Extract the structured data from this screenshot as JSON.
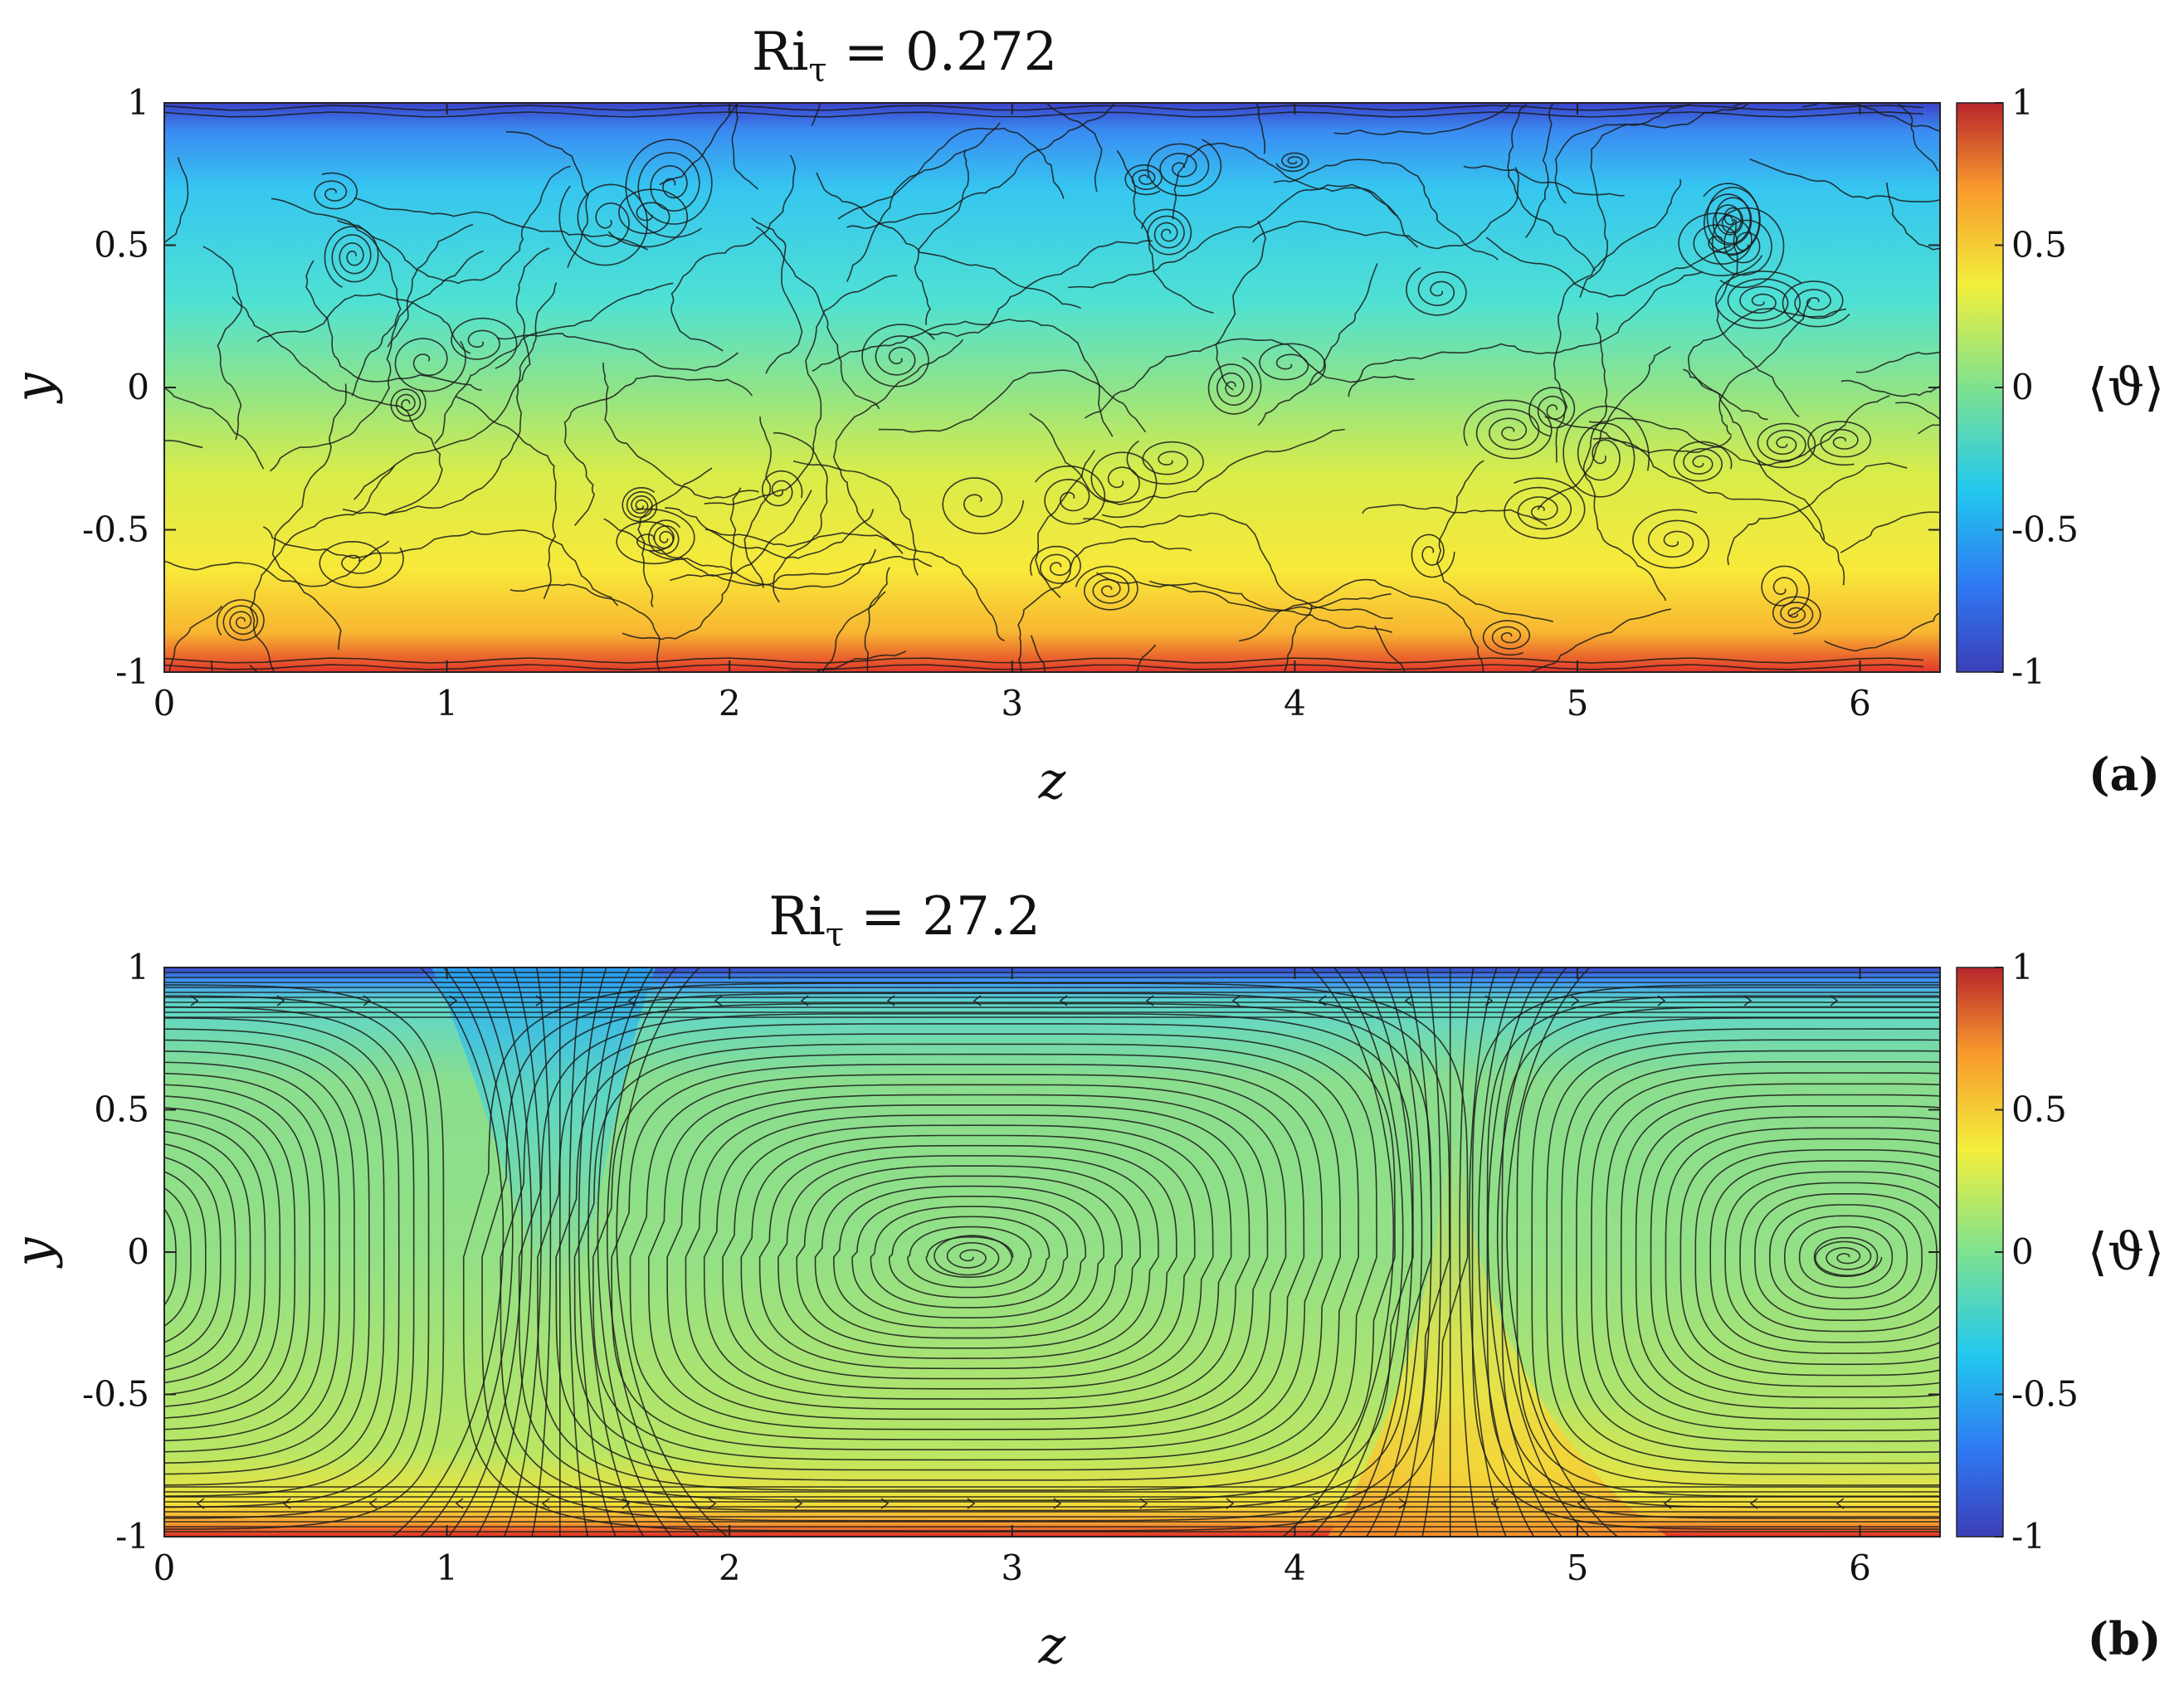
{
  "chart_data": [
    {
      "type": "heatmap",
      "panel_label": "(a)",
      "title_main": "Ri",
      "title_sub": "τ",
      "title_rest": " = 0.272",
      "xlabel": "z",
      "ylabel": "y",
      "xlim": [
        0,
        6.2832
      ],
      "ylim": [
        -1,
        1
      ],
      "xticks": [
        "0",
        "1",
        "2",
        "3",
        "4",
        "5",
        "6"
      ],
      "yticks": [
        "1",
        "0.5",
        "0",
        "-0.5",
        "-1"
      ],
      "colorbar": {
        "label": "⟨ϑ⟩",
        "range": [
          -1,
          1
        ],
        "ticks": [
          "1",
          "0.5",
          "0",
          "-0.5",
          "-1"
        ]
      },
      "field_profile": {
        "y": [
          -1,
          -0.97,
          -0.9,
          -0.6,
          -0.3,
          0,
          0.3,
          0.6,
          0.9,
          0.97,
          1
        ],
        "theta": [
          1,
          0.75,
          0.5,
          0.35,
          0.2,
          0.0,
          -0.2,
          -0.35,
          -0.5,
          -0.75,
          -1
        ]
      },
      "overlay": "streamlines (turbulent small vortices)"
    },
    {
      "type": "heatmap",
      "panel_label": "(b)",
      "title_main": "Ri",
      "title_sub": "τ",
      "title_rest": " = 27.2",
      "xlabel": "z",
      "ylabel": "y",
      "xlim": [
        0,
        6.2832
      ],
      "ylim": [
        -1,
        1
      ],
      "xticks": [
        "0",
        "1",
        "2",
        "3",
        "4",
        "5",
        "6"
      ],
      "yticks": [
        "1",
        "0.5",
        "0",
        "-0.5",
        "-1"
      ],
      "colorbar": {
        "label": "⟨ϑ⟩",
        "range": [
          -1,
          1
        ],
        "ticks": [
          "1",
          "0.5",
          "0",
          "-0.5",
          "-1"
        ]
      },
      "field_profile": {
        "y": [
          -1,
          -0.97,
          -0.9,
          0,
          0.9,
          0.97,
          1
        ],
        "theta": [
          1,
          0.6,
          0.25,
          0.08,
          -0.1,
          -0.6,
          -1
        ]
      },
      "overlay": "streamlines (large-scale counter-rotating rolls)",
      "vortex_centers_z": [
        2.85,
        5.95
      ],
      "plume_z": [
        1.4,
        4.55
      ]
    }
  ]
}
